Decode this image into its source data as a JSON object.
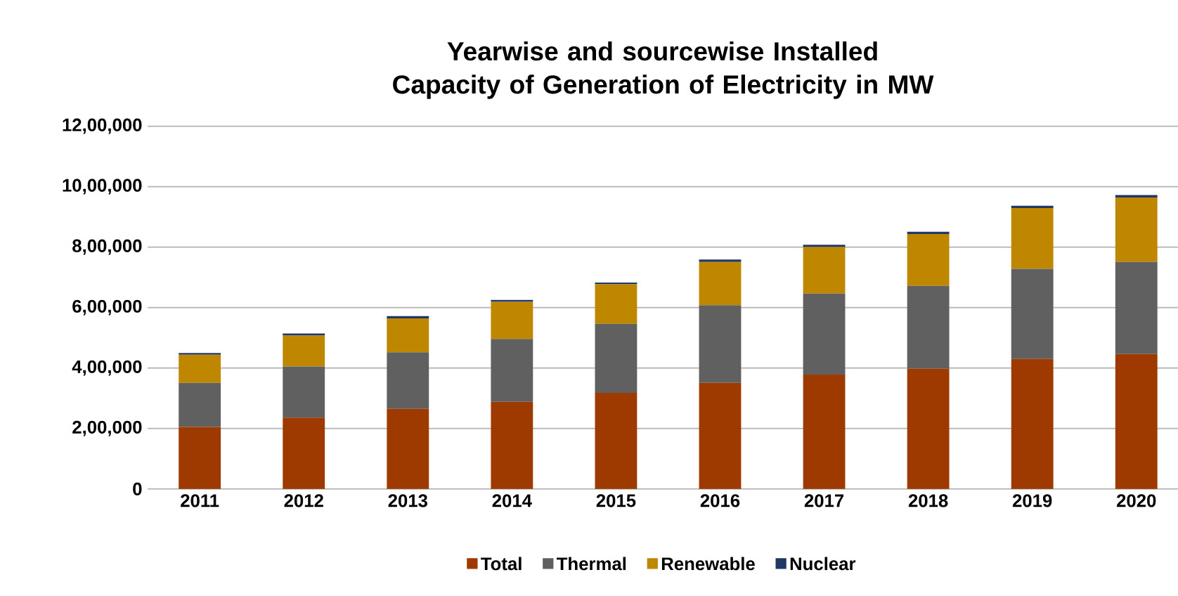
{
  "chart_data": {
    "type": "bar",
    "stacked": true,
    "title": "Yearwise and sourcewise Installed Capacity of Generation of Electricity in MW",
    "categories": [
      "2011",
      "2012",
      "2013",
      "2014",
      "2015",
      "2016",
      "2017",
      "2018",
      "2019",
      "2020"
    ],
    "series": [
      {
        "name": "Total",
        "color": "#9e3a00",
        "values": [
          205000,
          236000,
          265000,
          288000,
          318000,
          351000,
          378000,
          398000,
          430000,
          446000
        ]
      },
      {
        "name": "Thermal",
        "color": "#606060",
        "values": [
          146000,
          169000,
          187000,
          208000,
          228000,
          257000,
          268000,
          274000,
          298000,
          305000
        ]
      },
      {
        "name": "Renewable",
        "color": "#bf8600",
        "values": [
          93000,
          102000,
          112000,
          123000,
          131000,
          143000,
          154000,
          171000,
          201000,
          213000
        ]
      },
      {
        "name": "Nuclear",
        "color": "#1f3864",
        "values": [
          6000,
          7000,
          8000,
          6000,
          6000,
          8000,
          8000,
          8000,
          8000,
          8000
        ]
      }
    ],
    "ylim": [
      0,
      1200000
    ],
    "yticks": [
      {
        "value": 0,
        "label": "0"
      },
      {
        "value": 200000,
        "label": "2,00,000"
      },
      {
        "value": 400000,
        "label": "4,00,000"
      },
      {
        "value": 600000,
        "label": "6,00,000"
      },
      {
        "value": 800000,
        "label": "8,00,000"
      },
      {
        "value": 1000000,
        "label": "10,00,000"
      },
      {
        "value": 1200000,
        "label": "12,00,000"
      }
    ],
    "grid": "y",
    "legend": "bottom"
  }
}
